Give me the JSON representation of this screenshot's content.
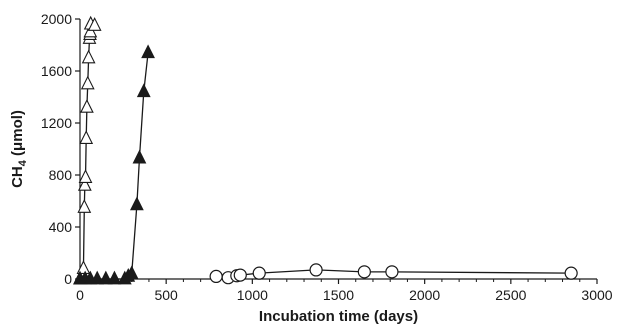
{
  "chart_data": {
    "type": "scatter",
    "xlabel": "Incubation time (days)",
    "ylabel": {
      "main": "CH",
      "subscript": "4",
      "rest": " (μmol)"
    },
    "xlim": [
      0,
      3000
    ],
    "ylim": [
      0,
      2000
    ],
    "x_ticks": [
      0,
      500,
      1000,
      1500,
      2000,
      2500,
      3000
    ],
    "y_ticks": [
      0,
      400,
      800,
      1200,
      1600,
      2000
    ],
    "grid": false,
    "series": [
      {
        "marker": "open-triangle",
        "connected": true,
        "color": "#1a1a1a",
        "points": [
          [
            0,
            0
          ],
          [
            5,
            0
          ],
          [
            10,
            10
          ],
          [
            15,
            30
          ],
          [
            20,
            80
          ],
          [
            25,
            550
          ],
          [
            28,
            720
          ],
          [
            32,
            780
          ],
          [
            36,
            1080
          ],
          [
            40,
            1320
          ],
          [
            45,
            1500
          ],
          [
            50,
            1700
          ],
          [
            55,
            1850
          ],
          [
            58,
            1880
          ],
          [
            60,
            1900
          ],
          [
            62,
            1960
          ],
          [
            85,
            1950
          ]
        ]
      },
      {
        "marker": "filled-triangle",
        "connected": true,
        "color": "#1a1a1a",
        "points": [
          [
            0,
            0
          ],
          [
            30,
            0
          ],
          [
            60,
            0
          ],
          [
            100,
            0
          ],
          [
            150,
            0
          ],
          [
            200,
            0
          ],
          [
            260,
            0
          ],
          [
            280,
            20
          ],
          [
            300,
            40
          ],
          [
            330,
            570
          ],
          [
            345,
            930
          ],
          [
            370,
            1440
          ],
          [
            395,
            1740
          ]
        ]
      },
      {
        "marker": "open-circle",
        "connected": true,
        "color": "#1a1a1a",
        "points": [
          [
            790,
            20
          ],
          [
            860,
            10
          ],
          [
            910,
            25
          ],
          [
            930,
            30
          ],
          [
            1040,
            45
          ],
          [
            1370,
            70
          ],
          [
            1650,
            55
          ],
          [
            1810,
            55
          ],
          [
            2850,
            45
          ]
        ]
      }
    ]
  }
}
